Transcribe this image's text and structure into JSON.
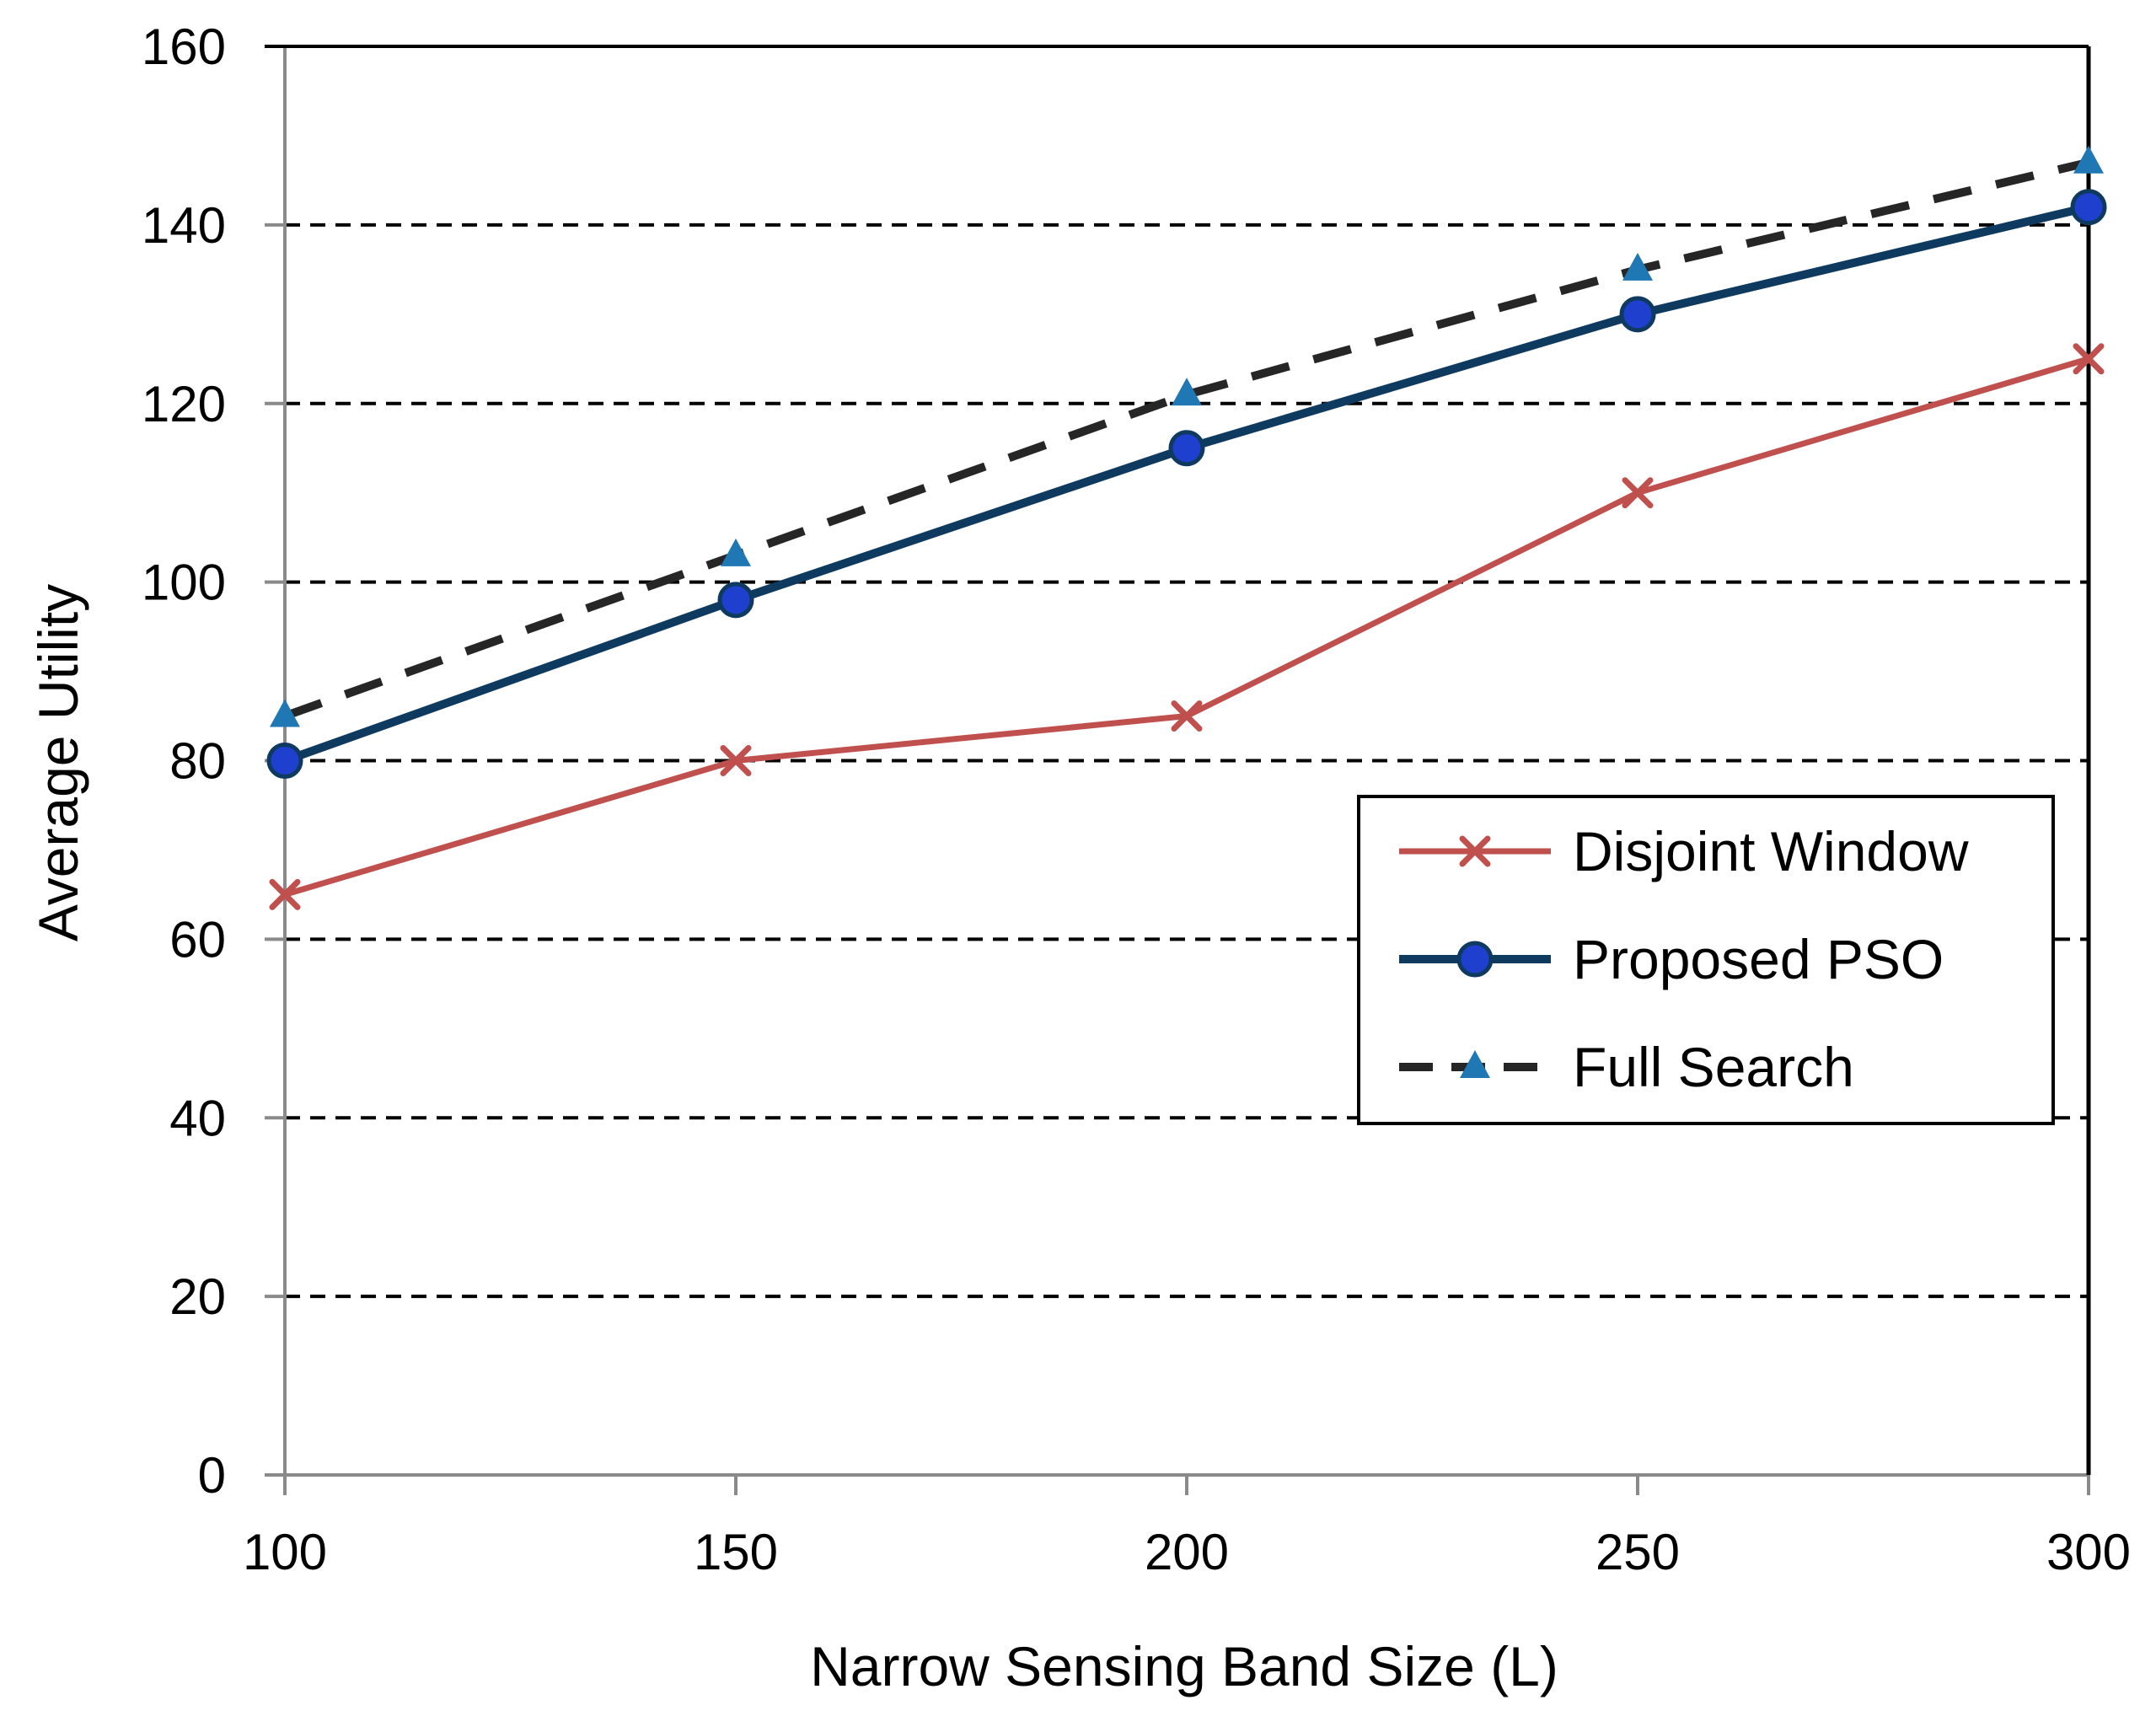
{
  "chart_data": {
    "type": "line",
    "title": "",
    "xlabel": "Narrow Sensing Band Size (L)",
    "ylabel": "Average Utility",
    "x": [
      100,
      150,
      200,
      250,
      300
    ],
    "xticks": [
      "100",
      "150",
      "200",
      "250",
      "300"
    ],
    "yticks": [
      "0",
      "20",
      "40",
      "60",
      "80",
      "100",
      "120",
      "140",
      "160"
    ],
    "xlim": [
      100,
      300
    ],
    "ylim": [
      0,
      160
    ],
    "grid": "horizontal dashed",
    "legend_position": "center-right",
    "series": [
      {
        "name": "Disjoint Window",
        "values": [
          65,
          80,
          85,
          110,
          125
        ],
        "color": "#C0504D",
        "marker": "x",
        "line_style": "solid"
      },
      {
        "name": "Proposed PSO",
        "values": [
          80,
          98,
          115,
          130,
          142
        ],
        "color": "#0F3A5F",
        "marker_color": "#1F3FCF",
        "marker": "circle",
        "line_style": "solid"
      },
      {
        "name": "Full Search",
        "values": [
          85,
          103,
          121,
          135,
          147
        ],
        "color": "#262626",
        "marker_color": "#1F77B4",
        "marker": "triangle",
        "line_style": "dashed"
      }
    ]
  }
}
